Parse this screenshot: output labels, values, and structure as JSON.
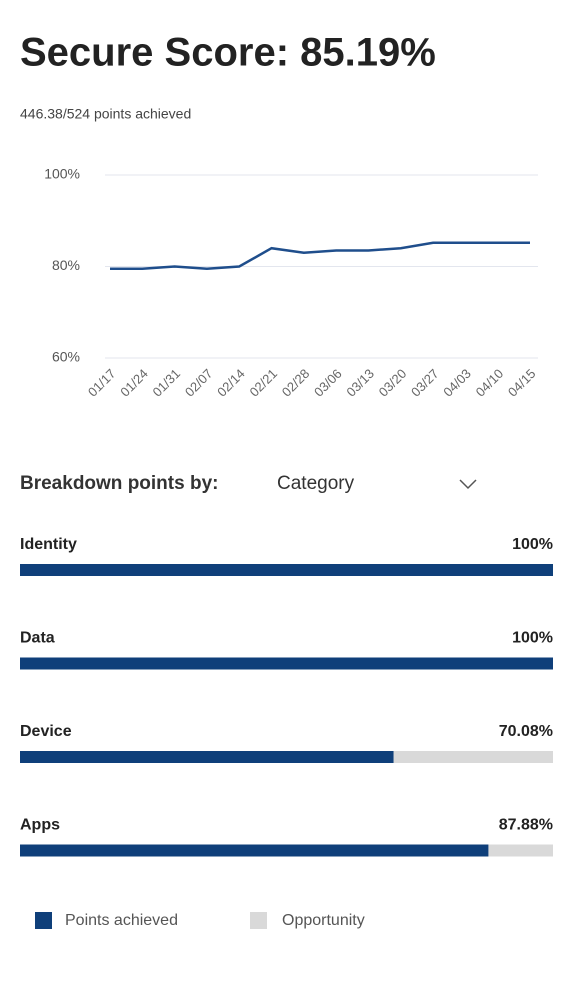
{
  "header": {
    "title": "Secure Score: 85.19%",
    "subtitle": "446.38/524 points achieved"
  },
  "chart_data": {
    "type": "line",
    "categories": [
      "01/17",
      "01/24",
      "01/31",
      "02/07",
      "02/14",
      "02/21",
      "02/28",
      "03/06",
      "03/13",
      "03/20",
      "03/27",
      "04/03",
      "04/10",
      "04/15"
    ],
    "values": [
      79.5,
      79.5,
      80,
      79.5,
      80,
      84,
      83,
      83.5,
      83.5,
      84,
      85.2,
      85.2,
      85.2,
      85.19
    ],
    "color": "#1f4e8c",
    "ylim": [
      60,
      100
    ],
    "yticks": [
      {
        "value": 60,
        "label": "60%"
      },
      {
        "value": 80,
        "label": "80%"
      },
      {
        "value": 100,
        "label": "100%"
      }
    ],
    "grid": true
  },
  "breakdown": {
    "type": "bar",
    "label": "Breakdown points by:",
    "dropdown": "Category",
    "categories": [
      "Identity",
      "Data",
      "Device",
      "Apps"
    ],
    "values": [
      100,
      100,
      70.08,
      87.88
    ],
    "value_labels": [
      "100%",
      "100%",
      "70.08%",
      "87.88%"
    ],
    "xlim": [
      0,
      100
    ],
    "color": "#0f3f7a",
    "track_color": "#d9d9d9"
  },
  "legend": {
    "items": [
      "Points achieved",
      "Opportunity"
    ]
  }
}
